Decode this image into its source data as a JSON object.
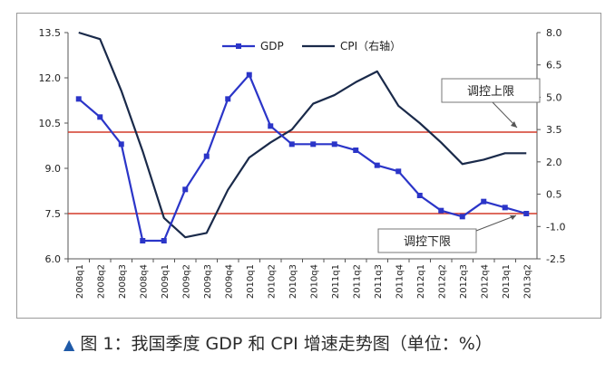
{
  "chart_data": {
    "type": "line",
    "categories": [
      "2008q1",
      "2008q2",
      "2008q3",
      "2008q4",
      "2009q1",
      "2009q2",
      "2009q3",
      "2009q4",
      "2010q1",
      "2010q2",
      "2010q3",
      "2010q4",
      "2011q1",
      "2011q2",
      "2011q3",
      "2011q4",
      "2012q1",
      "2012q2",
      "2012q3",
      "2012q4",
      "2013q1",
      "2013q2"
    ],
    "series": [
      {
        "name": "GDP",
        "axis": "left",
        "color": "#2b35c8",
        "marker": "square",
        "values": [
          11.3,
          10.7,
          9.8,
          6.6,
          6.6,
          8.3,
          9.4,
          11.3,
          12.1,
          10.4,
          9.8,
          9.8,
          9.8,
          9.6,
          9.1,
          8.9,
          8.1,
          7.6,
          7.4,
          7.9,
          7.7,
          7.5
        ]
      },
      {
        "name": "CPI（右轴）",
        "axis": "right",
        "color": "#1a2a4a",
        "marker": "none",
        "values": [
          8.0,
          7.7,
          5.3,
          2.5,
          -0.6,
          -1.5,
          -1.3,
          0.7,
          2.2,
          2.9,
          3.5,
          4.7,
          5.1,
          5.7,
          6.2,
          4.6,
          3.8,
          2.9,
          1.9,
          2.1,
          2.4,
          2.4
        ]
      }
    ],
    "y_left": {
      "min": 6.0,
      "max": 13.5,
      "ticks": [
        "6.0",
        "7.5",
        "9.0",
        "10.5",
        "12.0",
        "13.5"
      ]
    },
    "y_right": {
      "min": -2.5,
      "max": 8.0,
      "ticks": [
        "-2.5",
        "-1.0",
        "0.5",
        "2.0",
        "3.5",
        "5.0",
        "6.5",
        "8.0"
      ]
    },
    "reference_lines": [
      {
        "label": "调控上限",
        "value": 10.2,
        "axis": "left",
        "color": "#d43a2a"
      },
      {
        "label": "调控下限",
        "value": 7.5,
        "axis": "left",
        "color": "#d43a2a"
      }
    ],
    "legend": {
      "placement": "top-center"
    }
  },
  "caption": {
    "marker": "▲",
    "text": "图 1：我国季度 GDP 和 CPI 增速走势图（单位：%）"
  }
}
